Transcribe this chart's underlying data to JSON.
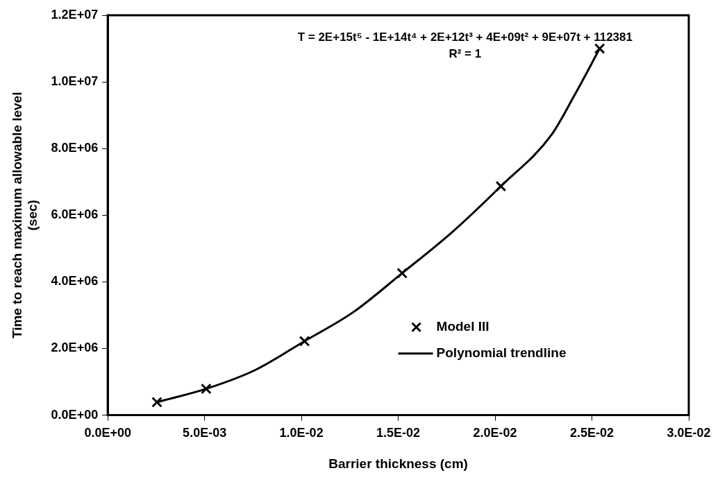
{
  "chart_data": {
    "type": "scatter",
    "xlabel": "Barrier thickness (cm)",
    "ylabel": "Time to reach maximum allowable level\n(sec)",
    "series": [
      {
        "name": "Model III",
        "type": "scatter",
        "color": "#000000",
        "marker": "cross",
        "x": [
          0.00254,
          0.00508,
          0.01016,
          0.0152,
          0.0203,
          0.0254
        ],
        "values": [
          390000,
          790000,
          2220000,
          4260000,
          6870000,
          11000000
        ]
      },
      {
        "name": "Polynomial trendline",
        "type": "line",
        "color": "#000000",
        "marker": "none",
        "line_style": "solid",
        "x": [
          0.00254,
          0.00508,
          0.0076,
          0.01016,
          0.0127,
          0.0152,
          0.0178,
          0.0203,
          0.0229,
          0.0241,
          0.0254
        ],
        "values": [
          390000,
          790000,
          1350000,
          2220000,
          3100000,
          4260000,
          5500000,
          6870000,
          8400000,
          9600000,
          11000000
        ]
      }
    ],
    "xlim": [
      0,
      0.03
    ],
    "xticks": [
      {
        "value": 0,
        "label": "0.0E+00"
      },
      {
        "value": 0.005,
        "label": "5.0E-03"
      },
      {
        "value": 0.01,
        "label": "1.0E-02"
      },
      {
        "value": 0.015,
        "label": "1.5E-02"
      },
      {
        "value": 0.02,
        "label": "2.0E-02"
      },
      {
        "value": 0.025,
        "label": "2.5E-02"
      },
      {
        "value": 0.03,
        "label": "3.0E-02"
      }
    ],
    "ylim": [
      0,
      12000000
    ],
    "yticks": [
      {
        "value": 0,
        "label": "0.0E+00"
      },
      {
        "value": 2000000,
        "label": "2.0E+06"
      },
      {
        "value": 4000000,
        "label": "4.0E+06"
      },
      {
        "value": 6000000,
        "label": "6.0E+06"
      },
      {
        "value": 8000000,
        "label": "8.0E+06"
      },
      {
        "value": 10000000,
        "label": "1.0E+07"
      },
      {
        "value": 12000000,
        "label": "1.2E+07"
      }
    ],
    "grid": false,
    "legend": "bottom right",
    "annotations": [
      "T = 2E+15t⁵ - 1E+14t⁴ + 2E+12t³ + 4E+09t² + 9E+07t + 112381",
      "R² = 1"
    ]
  }
}
